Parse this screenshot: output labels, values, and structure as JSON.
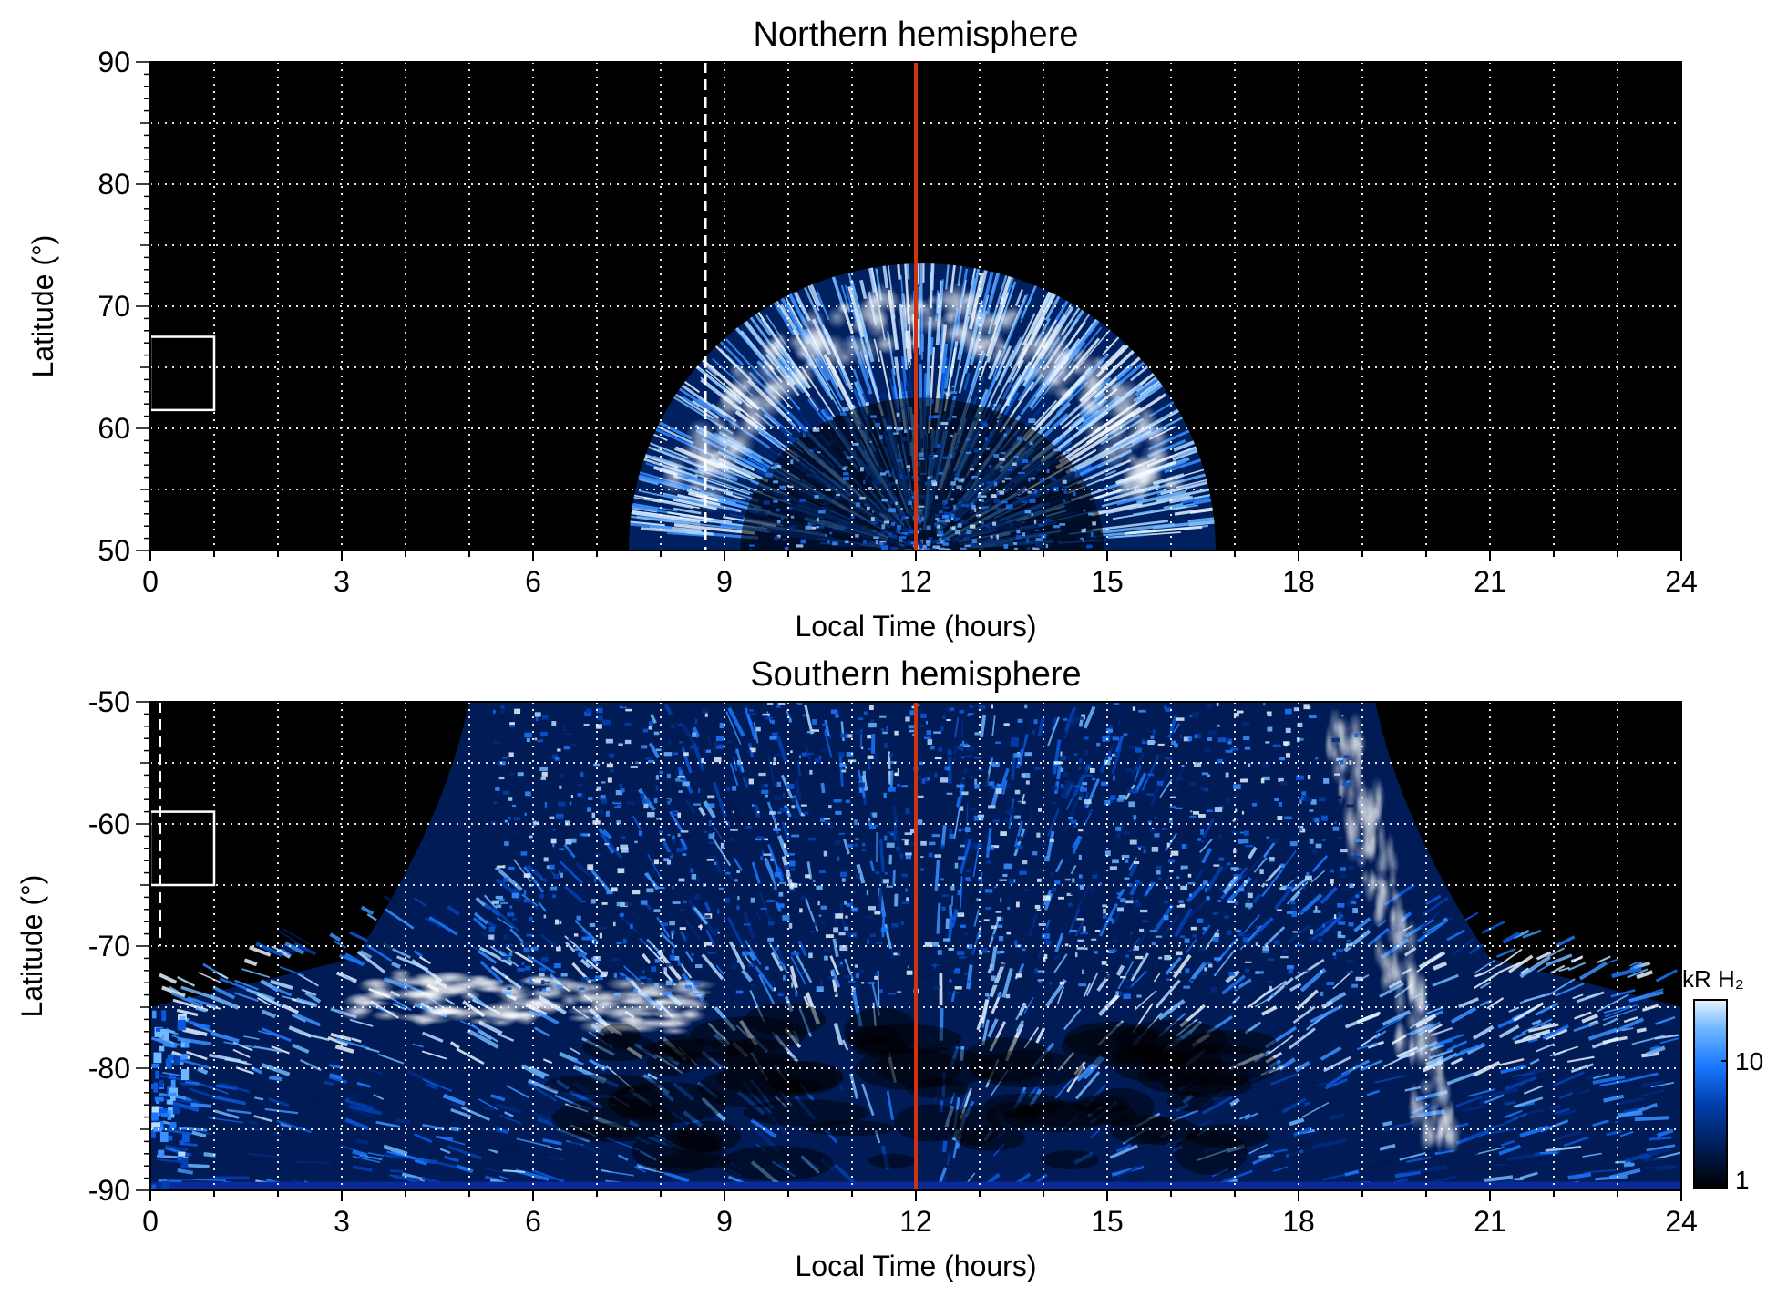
{
  "chart_data": [
    {
      "type": "heatmap",
      "title": "Northern hemisphere",
      "xlabel": "Local Time (hours)",
      "ylabel": "Latitude (°)",
      "xlim": [
        0,
        24
      ],
      "ylim": [
        50,
        90
      ],
      "xticks": [
        "0",
        "3",
        "6",
        "9",
        "12",
        "15",
        "18",
        "21",
        "24"
      ],
      "yticks": [
        "50",
        "60",
        "70",
        "80",
        "90"
      ],
      "grid": true,
      "grid_x_step_hours": 1,
      "grid_y_step_deg": 5,
      "background": "#000000",
      "reference_lines": [
        {
          "style": "solid",
          "color": "#cc3311",
          "x": 12
        },
        {
          "style": "dashed",
          "color": "#ffffff",
          "x": 8.7,
          "y_range": [
            50,
            90
          ]
        }
      ],
      "box": {
        "x": [
          0,
          1
        ],
        "y": [
          61.5,
          67.5
        ],
        "color": "#ffffff"
      },
      "emission_region": {
        "description_level": "oval",
        "outer_arc": {
          "center_x": 12.1,
          "half_width_hours_at_50": 4.6,
          "peak_lat": 73.5
        },
        "bright_band": {
          "lat_center": 67,
          "lat_halfwidth": 3.5
        },
        "inner_arc_peak_lat": 62.5
      }
    },
    {
      "type": "heatmap",
      "title": "Southern hemisphere",
      "xlabel": "Local Time (hours)",
      "ylabel": "Latitude (°)",
      "xlim": [
        0,
        24
      ],
      "ylim": [
        -90,
        -50
      ],
      "xticks": [
        "0",
        "3",
        "6",
        "9",
        "12",
        "15",
        "18",
        "21",
        "24"
      ],
      "yticks": [
        "-50",
        "-60",
        "-70",
        "-80",
        "-90"
      ],
      "grid": true,
      "grid_x_step_hours": 1,
      "grid_y_step_deg": 5,
      "background": "#000000",
      "reference_lines": [
        {
          "style": "solid",
          "color": "#cc3311",
          "x": 12
        },
        {
          "style": "dashed",
          "color": "#ffffff",
          "x": 0.15,
          "y_range": [
            -70,
            -50
          ]
        }
      ],
      "box": {
        "x": [
          0,
          1
        ],
        "y": [
          -65,
          -59
        ],
        "color": "#ffffff"
      },
      "colorbar": {
        "label": "kR H₂",
        "ticks": [
          "1",
          "10"
        ],
        "colors": [
          "#000000",
          "#001a4d",
          "#0040b0",
          "#1a78ff",
          "#70b8ff",
          "#e8f4ff"
        ]
      }
    }
  ]
}
